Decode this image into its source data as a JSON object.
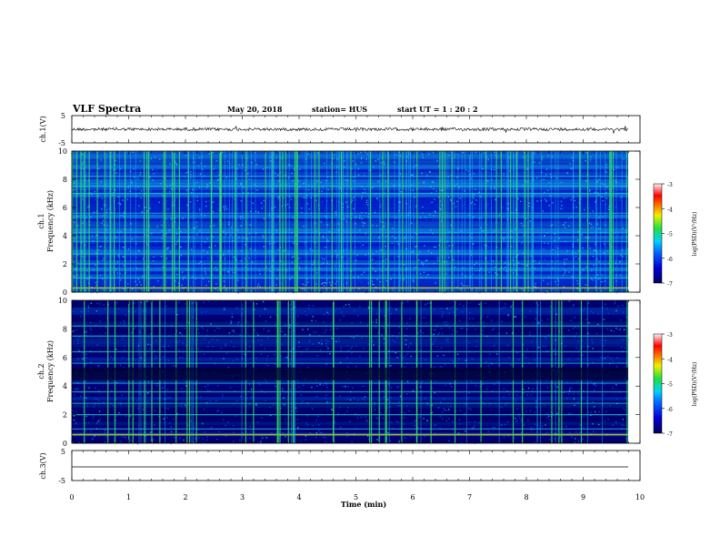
{
  "header": {
    "title": "VLF Spectra",
    "date": "May 20, 2018",
    "station": "station= HUS",
    "start": "start  UT  =   1 : 20 : 2"
  },
  "colors": {
    "low": "#00008b",
    "mid_blue": "#0050ff",
    "cyan": "#20c8e0",
    "green": "#30e060",
    "yellow": "#e8e800",
    "red": "#e00000",
    "pink": "#ffe0e8"
  },
  "colorbar": {
    "ticks": [
      "-3",
      "-4",
      "-5",
      "-6",
      "-7"
    ],
    "label": "log(PSD)(V²/Hz)"
  },
  "chart_data": [
    {
      "type": "line",
      "panel": "ch1-waveform",
      "ylabel": "ch.1(V)",
      "ylim": [
        -5,
        5
      ],
      "yticks": [
        "5",
        "-5"
      ],
      "note": "noisy waveform around ~0 V across 0–9.8 min"
    },
    {
      "type": "heatmap",
      "panel": "ch1-spectrogram",
      "ylabel": "ch.1\nFrequency  (kHz)",
      "ylabel_lines": [
        "ch.1",
        "Frequency  (kHz)"
      ],
      "yticks": [
        "0",
        "2",
        "4",
        "6",
        "8",
        "10"
      ],
      "ylim": [
        0,
        10
      ],
      "xlim": [
        0,
        9.8
      ],
      "colorbar_range": [
        -7,
        -3
      ],
      "tone_lines_khz": [
        0.3,
        1.0,
        2.0,
        2.7,
        3.6,
        4.2,
        5.6,
        7.0,
        7.5,
        8.2
      ]
    },
    {
      "type": "heatmap",
      "panel": "ch2-spectrogram",
      "ylabel": "ch.2\nFrequency  (kHz)",
      "ylabel_lines": [
        "ch.2",
        "Frequency  (kHz)"
      ],
      "yticks": [
        "0",
        "2",
        "4",
        "6",
        "8",
        "10"
      ],
      "ylim": [
        0,
        10
      ],
      "xlim": [
        0,
        9.8
      ],
      "colorbar_range": [
        -7,
        -3
      ],
      "tone_lines_khz": [
        0.6,
        1.0,
        2.0,
        2.8,
        3.6,
        4.2,
        5.6,
        6.4,
        7.5,
        8.2
      ]
    },
    {
      "type": "line",
      "panel": "ch3-waveform",
      "ylabel": "ch.3(V)",
      "ylim": [
        -5,
        5
      ],
      "yticks": [
        "5",
        "-5"
      ],
      "note": "flat line near -1 V"
    }
  ],
  "xaxis": {
    "label": "Time  (min)",
    "ticks": [
      "0",
      "1",
      "2",
      "3",
      "4",
      "5",
      "6",
      "7",
      "8",
      "9",
      "10"
    ],
    "range": [
      0,
      10
    ]
  }
}
